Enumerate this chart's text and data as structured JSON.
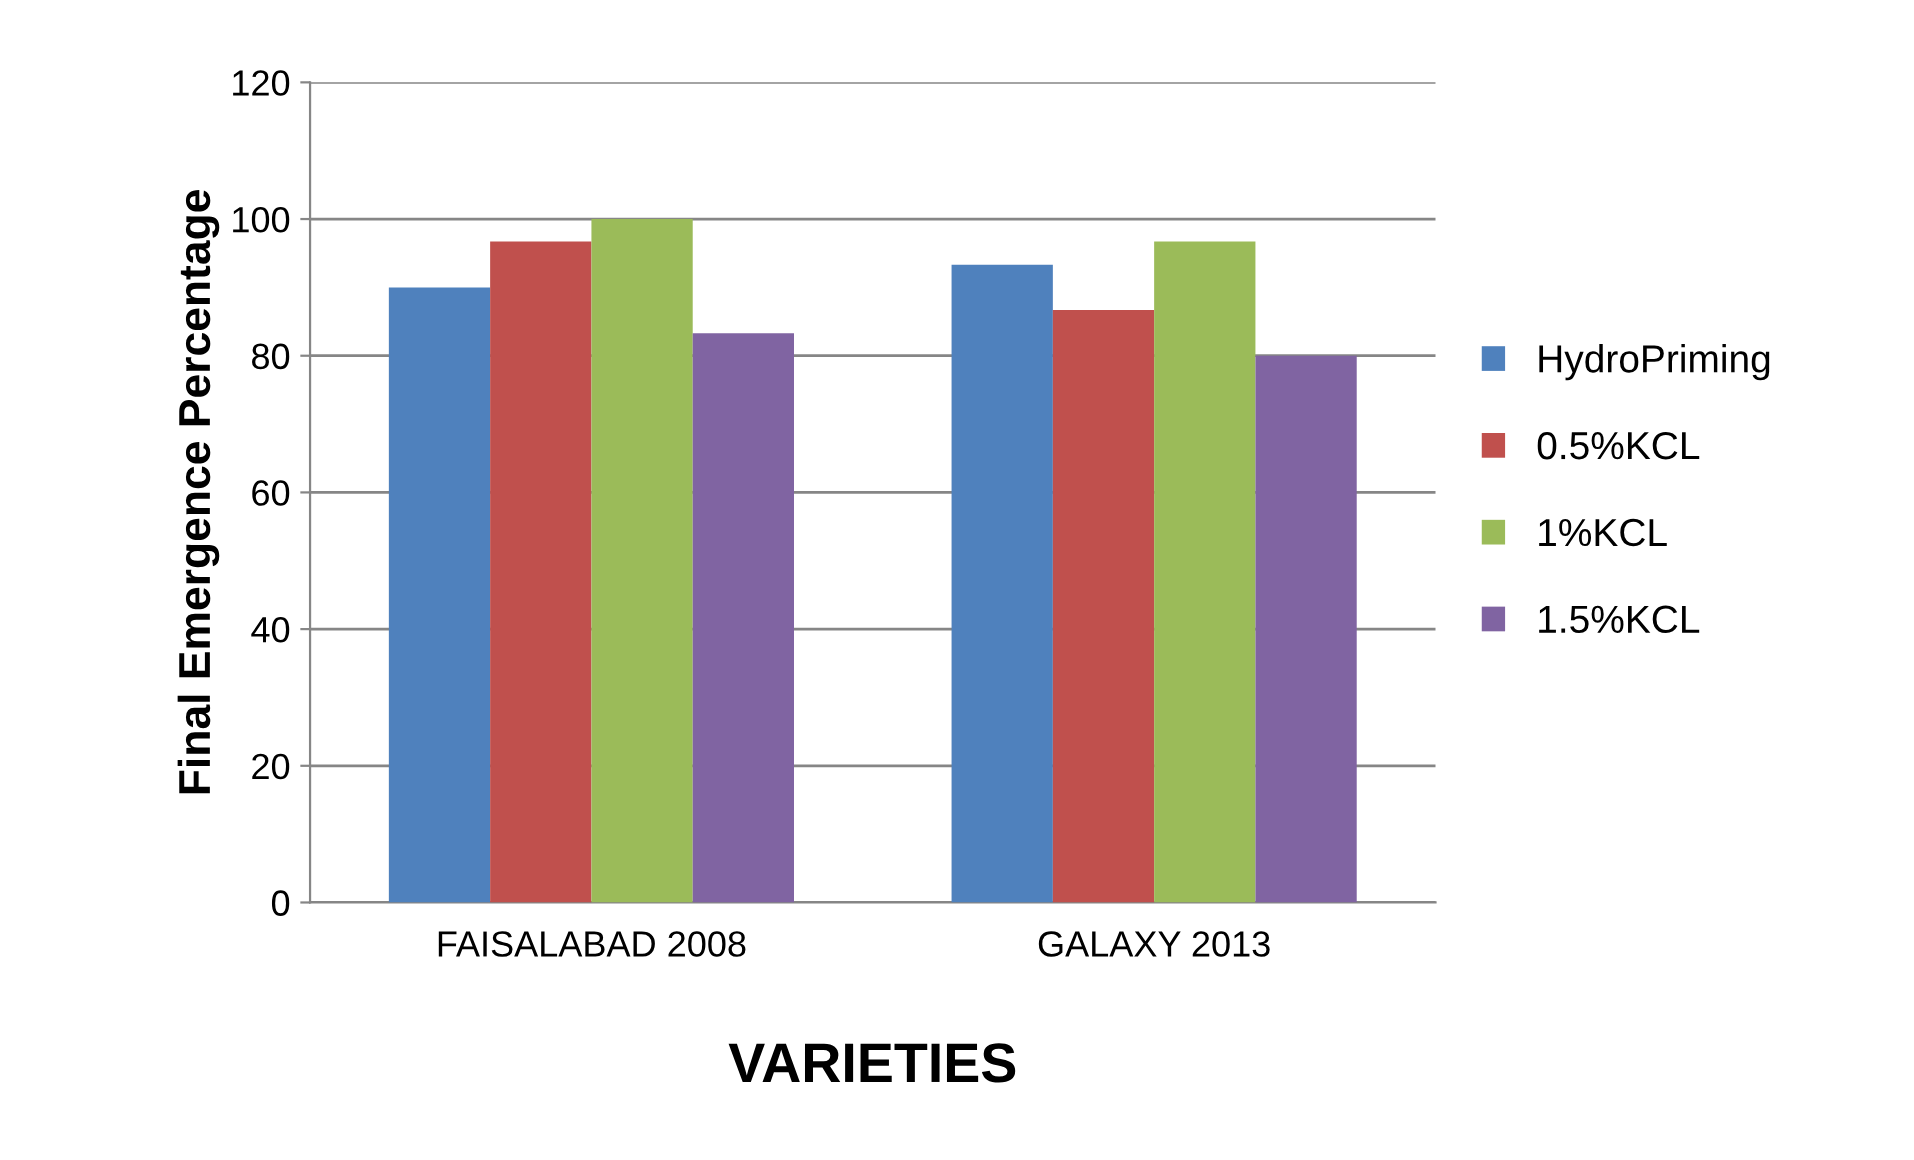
{
  "chart_data": {
    "type": "bar",
    "xlabel": "VARIETIES",
    "ylabel": "Final Emergence Percentage",
    "categories": [
      "FAISALABAD 2008",
      "GALAXY 2013"
    ],
    "series": [
      {
        "name": "HydroPriming",
        "color": "#4f81bd",
        "values": [
          90,
          93.3
        ]
      },
      {
        "name": "0.5%KCL",
        "color": "#c0504d",
        "values": [
          96.7,
          86.7
        ]
      },
      {
        "name": "1%KCL",
        "color": "#9bbb59",
        "values": [
          100,
          96.7
        ]
      },
      {
        "name": "1.5%KCL",
        "color": "#8064a2",
        "values": [
          83.3,
          80
        ]
      }
    ],
    "ylim": [
      0,
      120
    ],
    "yticks": [
      0,
      20,
      40,
      60,
      80,
      100,
      120
    ],
    "grid": "y",
    "legend": "right"
  }
}
